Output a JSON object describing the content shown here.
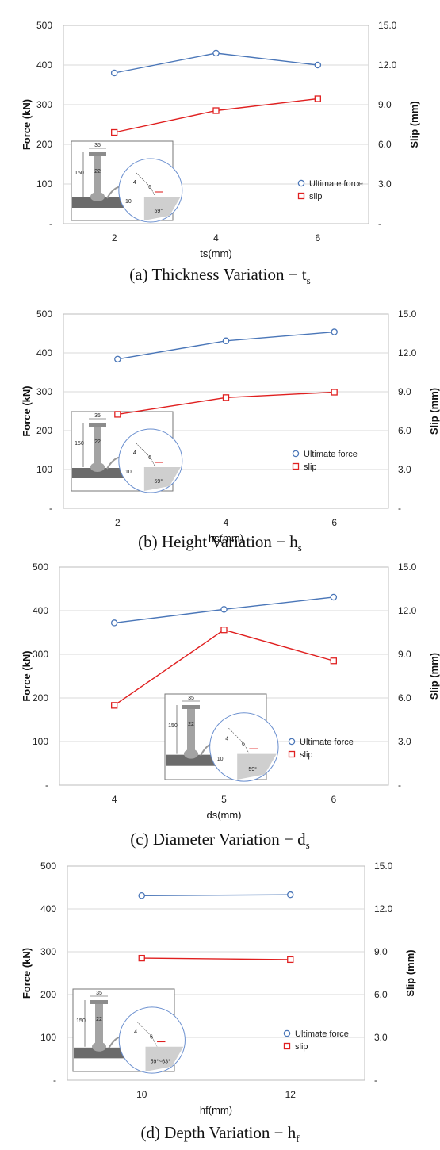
{
  "colors": {
    "force": "#4a76b8",
    "slip": "#e02020",
    "grid": "#d9d9d9",
    "frame": "#bdbdbd"
  },
  "chart_data": [
    {
      "type": "line",
      "caption_main": "(a) Thickness Variation − t",
      "caption_sub": "s",
      "xlabel": "ts(mm)",
      "ylabel": "Force (kN)",
      "y2label": "Slip (mm)",
      "x": [
        2,
        4,
        6
      ],
      "xticks": [
        "2",
        "4",
        "6"
      ],
      "xlim": [
        1,
        7
      ],
      "ylim": [
        0,
        500
      ],
      "y2lim": [
        0,
        15
      ],
      "yticks": [
        "-",
        "100",
        "200",
        "300",
        "400",
        "500"
      ],
      "y2ticks": [
        "-",
        "3.0",
        "6.0",
        "9.0",
        "12.0",
        "15.0"
      ],
      "series": [
        {
          "name": "Ultimate force",
          "axis": "left",
          "marker": "circle",
          "values": [
            380,
            430,
            400
          ]
        },
        {
          "name": "slip",
          "axis": "right",
          "marker": "square",
          "values": [
            6.9,
            8.55,
            9.45
          ]
        }
      ],
      "inset": {
        "dim_width": "35",
        "dim_height": "150",
        "dim_22": "22",
        "dim_4": "4",
        "dim_6": "6",
        "dim_10": "10",
        "angle": "59°",
        "highlight": "ts"
      }
    },
    {
      "type": "line",
      "caption_main": "(b) Height Variation − h",
      "caption_sub": "s",
      "xlabel": "hs(mm)",
      "ylabel": "Force (kN)",
      "y2label": "Slip (mm)",
      "x": [
        2,
        4,
        6
      ],
      "xticks": [
        "2",
        "4",
        "6"
      ],
      "xlim": [
        1,
        7
      ],
      "ylim": [
        0,
        500
      ],
      "y2lim": [
        0,
        15
      ],
      "yticks": [
        "-",
        "100",
        "200",
        "300",
        "400",
        "500"
      ],
      "y2ticks": [
        "-",
        "3.0",
        "6.0",
        "9.0",
        "12.0",
        "15.0"
      ],
      "series": [
        {
          "name": "Ultimate force",
          "axis": "left",
          "marker": "circle",
          "values": [
            384,
            431,
            454
          ]
        },
        {
          "name": "slip",
          "axis": "right",
          "marker": "square",
          "values": [
            7.26,
            8.55,
            8.97
          ]
        }
      ],
      "inset": {
        "dim_width": "35",
        "dim_height": "150",
        "dim_22": "22",
        "dim_4": "4",
        "dim_6": "6",
        "dim_10": "10",
        "angle": "59°",
        "highlight": "hs"
      }
    },
    {
      "type": "line",
      "caption_main": "(c) Diameter Variation − d",
      "caption_sub": "s",
      "xlabel": "ds(mm)",
      "ylabel": "Force (kN)",
      "y2label": "Slip (mm)",
      "x": [
        4,
        5,
        6
      ],
      "xticks": [
        "4",
        "5",
        "6"
      ],
      "xlim": [
        3.5,
        6.5
      ],
      "ylim": [
        0,
        500
      ],
      "y2lim": [
        0,
        15
      ],
      "yticks": [
        "-",
        "100",
        "200",
        "300",
        "400",
        "500"
      ],
      "y2ticks": [
        "-",
        "3.0",
        "6.0",
        "9.0",
        "12.0",
        "15.0"
      ],
      "series": [
        {
          "name": "Ultimate force",
          "axis": "left",
          "marker": "circle",
          "values": [
            372,
            403,
            431
          ]
        },
        {
          "name": "slip",
          "axis": "right",
          "marker": "square",
          "values": [
            5.49,
            10.68,
            8.55
          ]
        }
      ],
      "inset": {
        "dim_width": "35",
        "dim_height": "150",
        "dim_22": "22",
        "dim_4": "4",
        "dim_6": "6",
        "dim_10": "10",
        "angle": "59°",
        "highlight": "ds"
      }
    },
    {
      "type": "line",
      "caption_main": "(d) Depth Variation − h",
      "caption_sub": "f",
      "xlabel": "hf(mm)",
      "ylabel": "Force (kN)",
      "y2label": "Slip (mm)",
      "x": [
        10,
        12
      ],
      "xticks": [
        "10",
        "12"
      ],
      "xlim": [
        9,
        13
      ],
      "ylim": [
        0,
        500
      ],
      "y2lim": [
        0,
        15
      ],
      "yticks": [
        "-",
        "100",
        "200",
        "300",
        "400",
        "500"
      ],
      "y2ticks": [
        "-",
        "3.0",
        "6.0",
        "9.0",
        "12.0",
        "15.0"
      ],
      "series": [
        {
          "name": "Ultimate force",
          "axis": "left",
          "marker": "circle",
          "values": [
            431,
            433
          ]
        },
        {
          "name": "slip",
          "axis": "right",
          "marker": "square",
          "values": [
            8.55,
            8.45
          ]
        }
      ],
      "inset": {
        "dim_width": "35",
        "dim_height": "150",
        "dim_22": "22",
        "dim_4": "4",
        "dim_6": "6",
        "dim_10": "",
        "angle": "59°~63°",
        "highlight": "hf"
      }
    }
  ]
}
